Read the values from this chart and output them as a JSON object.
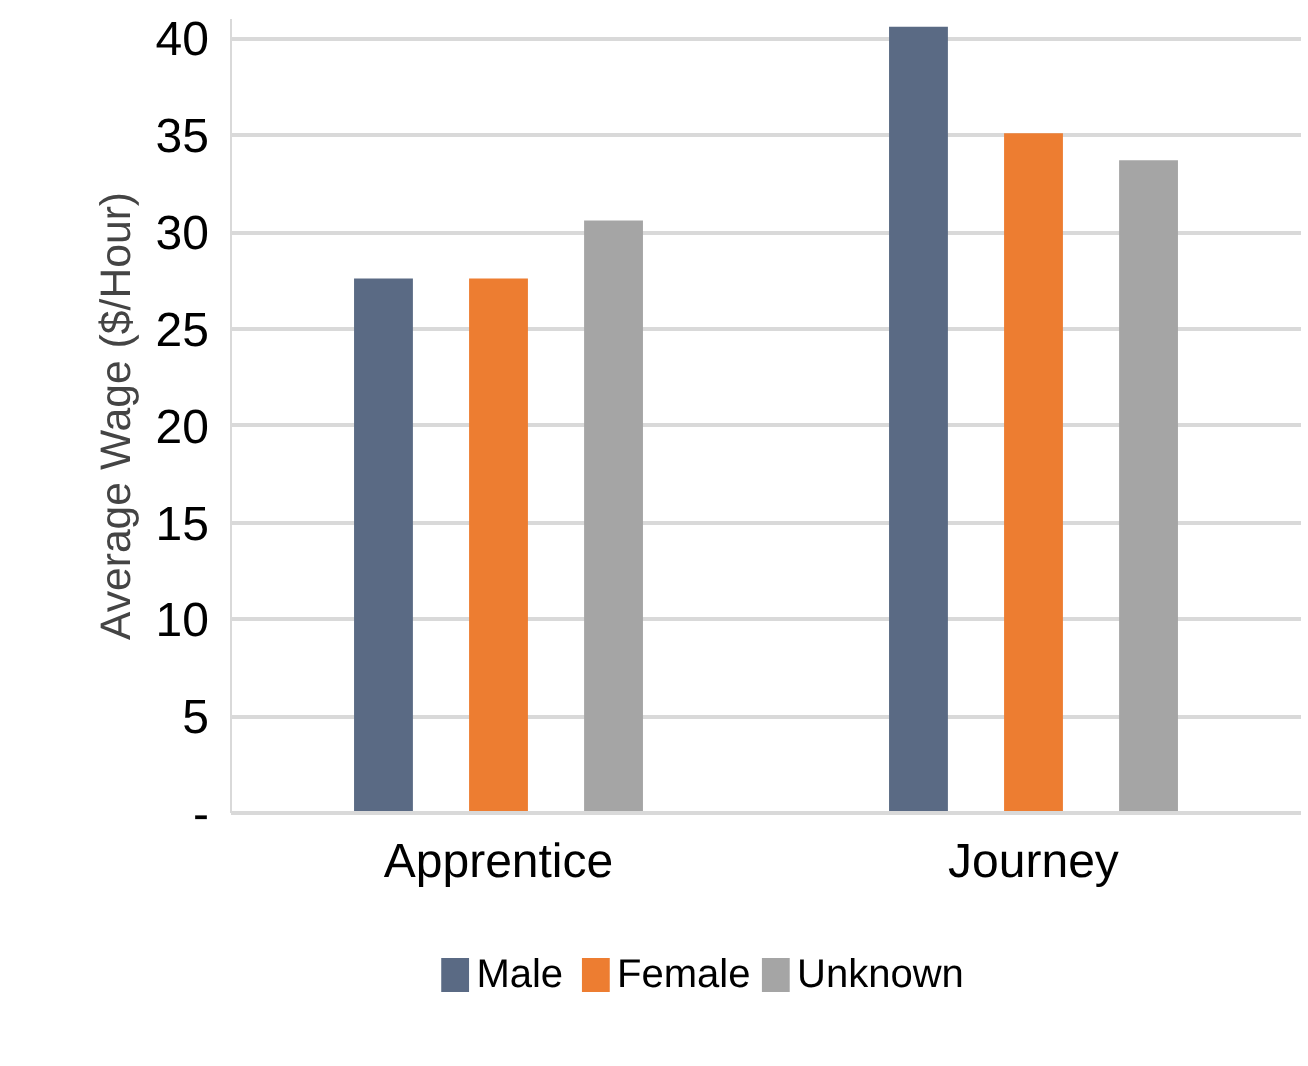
{
  "chart_data": {
    "type": "bar",
    "ylabel": "Average Wage ($/Hour)",
    "categories": [
      "Apprentice",
      "Journey"
    ],
    "series": [
      {
        "name": "Male",
        "color": "#5a6a84",
        "values": [
          27.6,
          40.6
        ]
      },
      {
        "name": "Female",
        "color": "#ed7d31",
        "values": [
          27.6,
          35.1
        ]
      },
      {
        "name": "Unknown",
        "color": "#a5a5a5",
        "values": [
          30.6,
          33.7
        ]
      }
    ],
    "ylim": [
      0,
      41
    ],
    "yticks": [
      {
        "value": 0,
        "label": "-"
      },
      5,
      10,
      15,
      20,
      25,
      30,
      35,
      40
    ],
    "grid": "y",
    "legend": "bottom"
  }
}
